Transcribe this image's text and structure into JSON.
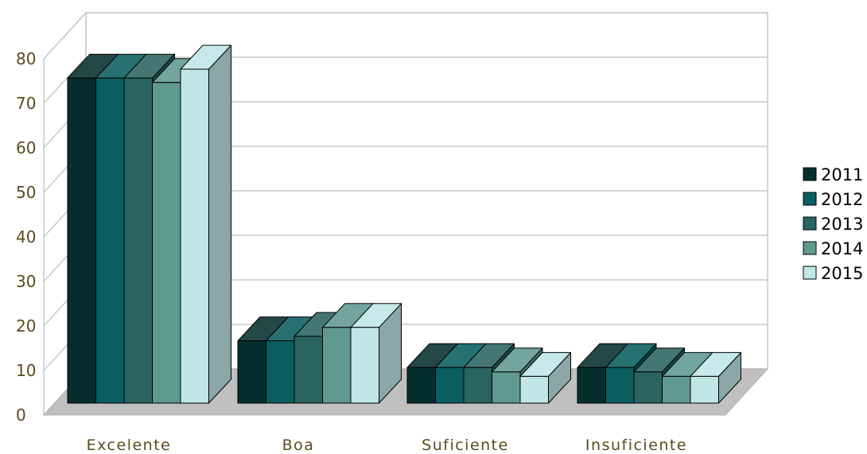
{
  "chart_data": {
    "type": "bar",
    "title": "",
    "xlabel": "",
    "ylabel": "",
    "ylim": [
      0,
      80
    ],
    "yticks": [
      0,
      10,
      20,
      30,
      40,
      50,
      60,
      70,
      80
    ],
    "grid": true,
    "style": "3d-clustered-columns",
    "legend_position": "right",
    "categories": [
      "Excelente",
      "Boa",
      "Suficiente",
      "Insuficiente"
    ],
    "series": [
      {
        "name": "2011",
        "color": "#062e2e",
        "values": [
          73,
          14,
          8,
          8
        ]
      },
      {
        "name": "2012",
        "color": "#0b5e60",
        "values": [
          73,
          14,
          8,
          8
        ]
      },
      {
        "name": "2013",
        "color": "#2a6460",
        "values": [
          73,
          15,
          8,
          7
        ]
      },
      {
        "name": "2014",
        "color": "#5f9990",
        "values": [
          72,
          17,
          7,
          6
        ]
      },
      {
        "name": "2015",
        "color": "#c1e6e8",
        "values": [
          75,
          17,
          6,
          6
        ]
      }
    ]
  }
}
